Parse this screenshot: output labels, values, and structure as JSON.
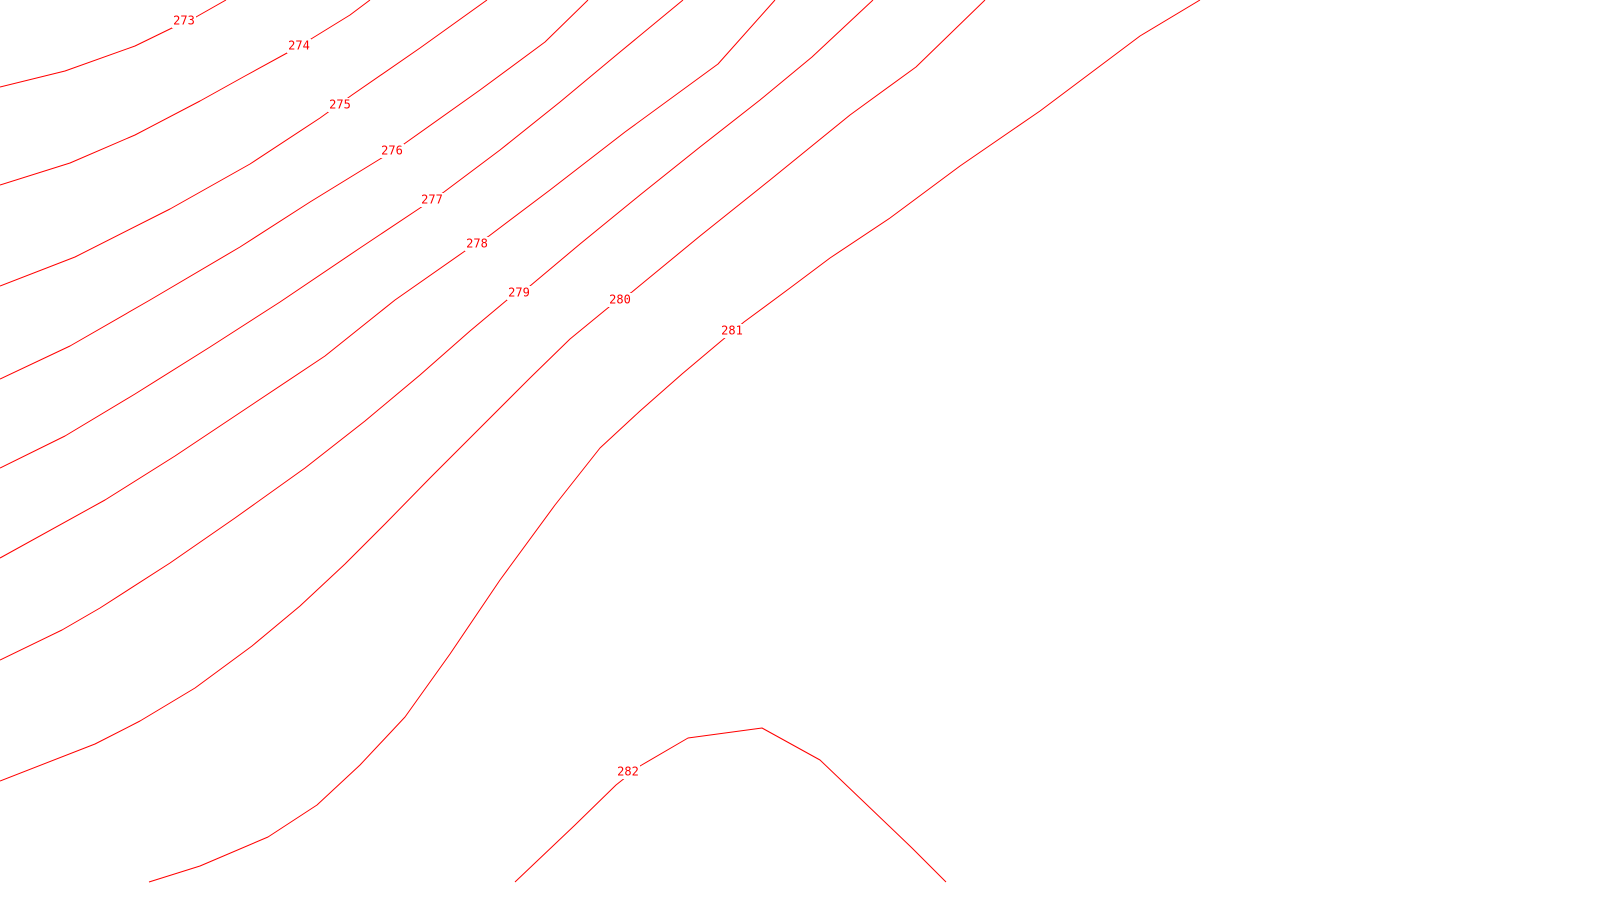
{
  "map": {
    "line_color": "#ff0000",
    "background_color": "#ffffff",
    "contour_levels": [
      "273",
      "274",
      "275",
      "276",
      "277",
      "278",
      "279",
      "280",
      "281",
      "282"
    ]
  }
}
